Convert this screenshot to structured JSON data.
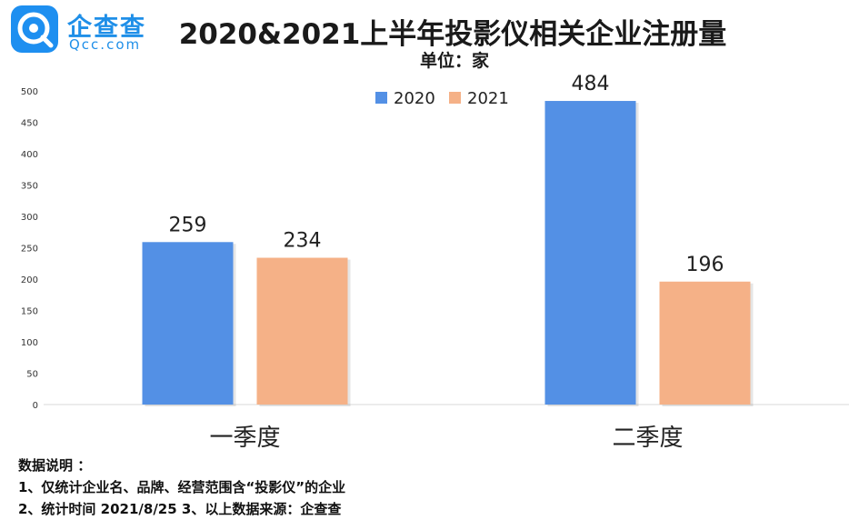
{
  "logo": {
    "name": "企查查",
    "domain": "Qcc.com"
  },
  "unit_label": "单位：家",
  "notes": {
    "heading": "数据说明 ：",
    "line1": "1、仅统计企业名、品牌、经营范围含“投影仪”的企业",
    "line2": "2、统计时间 2021/8/25    3、以上数据来源：企查查"
  },
  "colors": {
    "series_2020": "#5390e5",
    "series_2021": "#f5b187",
    "axis": "#d9d9d9"
  },
  "chart_data": {
    "type": "bar",
    "title": "2020&2021上半年投影仪相关企业注册量",
    "categories": [
      "一季度",
      "二季度"
    ],
    "series": [
      {
        "name": "2020",
        "values": [
          259,
          484
        ]
      },
      {
        "name": "2021",
        "values": [
          234,
          196
        ]
      }
    ],
    "yticks": [
      "0",
      "50",
      "100",
      "150",
      "200",
      "250",
      "300",
      "350",
      "400",
      "450",
      "500"
    ],
    "ylim": [
      0,
      500
    ],
    "grid": false,
    "legend": "top-center"
  }
}
